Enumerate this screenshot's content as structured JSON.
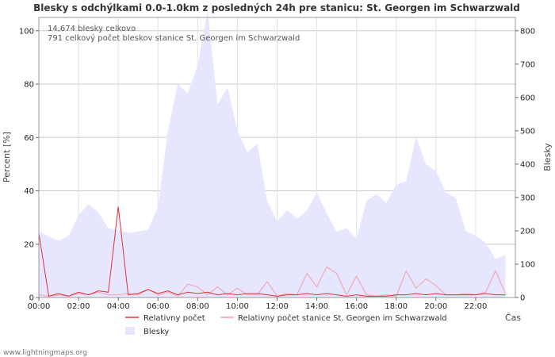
{
  "chart_data": {
    "type": "area+line",
    "title": "Blesky s odchýlkami 0.0-1.0km z posledných 24h pre stanicu: St. Georgen im Schwarzwald",
    "ylabel_left": "Percent   [%]",
    "ylabel_right": "Blesky",
    "xlabel": "Čas",
    "ylim_left": [
      0,
      105
    ],
    "ylim_right": [
      0,
      840
    ],
    "yticks_left": [
      0,
      20,
      40,
      60,
      80,
      100
    ],
    "yticks_right": [
      0,
      100,
      200,
      300,
      400,
      500,
      600,
      700,
      800
    ],
    "xticks": [
      "00:00",
      "02:00",
      "04:00",
      "06:00",
      "08:00",
      "10:00",
      "12:00",
      "14:00",
      "16:00",
      "18:00",
      "20:00",
      "22:00"
    ],
    "annotations": [
      "14,674 blesky celkovo",
      "791 celkový počet bleskov stanice St. Georgen im Schwarzwald"
    ],
    "x_hours": [
      0,
      0.5,
      1,
      1.5,
      2,
      2.5,
      3,
      3.5,
      4,
      4.5,
      5,
      5.5,
      6,
      6.5,
      7,
      7.5,
      8,
      8.5,
      9,
      9.5,
      10,
      10.5,
      11,
      11.5,
      12,
      12.5,
      13,
      13.5,
      14,
      14.5,
      15,
      15.5,
      16,
      16.5,
      17,
      17.5,
      18,
      18.5,
      19,
      19.5,
      20,
      20.5,
      21,
      21.5,
      22,
      22.5,
      23,
      23.5
    ],
    "series": [
      {
        "name": "Blesky",
        "axis": "right",
        "color": "#e6e6ff",
        "values": [
          200,
          183,
          170,
          185,
          247,
          280,
          255,
          208,
          203,
          194,
          198,
          203,
          272,
          500,
          640,
          612,
          695,
          860,
          578,
          630,
          502,
          435,
          462,
          290,
          228,
          262,
          237,
          260,
          315,
          252,
          197,
          208,
          175,
          290,
          310,
          283,
          338,
          348,
          482,
          400,
          378,
          316,
          298,
          200,
          185,
          165,
          115,
          128
        ]
      },
      {
        "name": "Relativny počet",
        "axis": "left",
        "color": "#e0303a",
        "values": [
          24,
          0.5,
          1.5,
          0.5,
          2,
          1,
          2.5,
          2,
          34,
          1,
          1.5,
          3,
          1.5,
          2.5,
          1,
          2,
          1.5,
          2,
          1,
          1.5,
          1,
          1.5,
          1.5,
          1,
          0.5,
          1,
          1,
          1.5,
          1,
          1.5,
          1,
          0.5,
          1,
          0.5,
          0.5,
          0.5,
          1,
          1,
          1.5,
          1,
          1.5,
          1,
          1,
          1,
          1,
          1.5,
          1,
          1
        ]
      },
      {
        "name": "Relativny počet stanice St. Georgen im Schwarzwald",
        "axis": "left",
        "color": "#f4a0a8",
        "values": [
          1,
          0.5,
          1,
          0.5,
          1.5,
          1,
          2,
          1,
          1,
          1.5,
          1,
          3,
          1,
          2,
          0.5,
          5,
          4,
          1,
          4,
          1,
          3.5,
          1,
          1,
          6,
          0.5,
          1.5,
          1,
          9,
          4,
          11.5,
          9,
          1,
          8,
          1,
          0.5,
          1,
          0.5,
          10,
          3.5,
          7,
          4.5,
          1,
          1,
          1.5,
          1,
          2,
          10,
          1.5
        ]
      }
    ]
  },
  "footer": "www.lightningmaps.org"
}
